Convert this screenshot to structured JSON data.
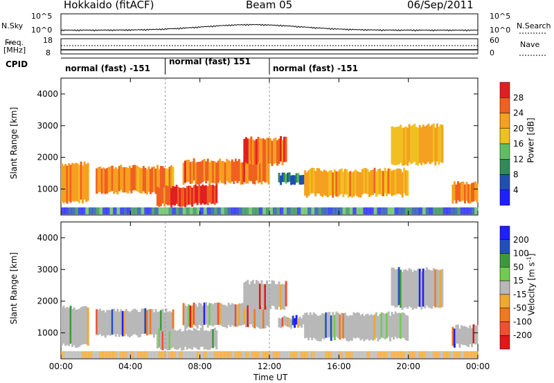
{
  "header": {
    "radar": "Hokkaido (fitACF)",
    "beam": "Beam 05",
    "date": "06/Sep/2011"
  },
  "top_panel": {
    "left_label": "N.Sky",
    "right_label": "N.Search",
    "left_ticks": [
      "10^5",
      "10^0"
    ],
    "right_ticks": [
      "10^5",
      "10^0"
    ]
  },
  "freq_panel": {
    "left_label_line1": "Freq.",
    "left_label_line2": "[MHz]",
    "right_label": "Nave",
    "left_ticks": [
      "18",
      "8"
    ],
    "right_ticks": [
      "60",
      "0"
    ]
  },
  "cpid": {
    "label": "CPID",
    "segments": [
      {
        "text": "normal (fast) -151",
        "start_h": 0,
        "end_h": 6
      },
      {
        "text": "normal (fast) 151",
        "start_h": 6,
        "end_h": 12
      },
      {
        "text": "normal (fast) -151",
        "start_h": 12,
        "end_h": 24
      }
    ]
  },
  "colors": {
    "power_scale": [
      "#1f1fff",
      "#1f4fb0",
      "#2e8b57",
      "#5fbf5f",
      "#f0c020",
      "#f5a020",
      "#f06020",
      "#e02020"
    ],
    "velocity_scale": [
      "#1f1fff",
      "#2050c0",
      "#3a9a3a",
      "#70cc50",
      "#b8b8b8",
      "#f0a830",
      "#f07820",
      "#f05030",
      "#e01818"
    ],
    "ground_scatter": "#b8b8b8"
  },
  "chart_data": [
    {
      "type": "heatmap",
      "name_on_chart": "Power [dB]",
      "ylabel": "Slant Range [km]",
      "xlabel": "Time UT",
      "x_ticks": [
        "00:00",
        "04:00",
        "08:00",
        "12:00",
        "16:00",
        "20:00",
        "00:00"
      ],
      "x_range_hours": [
        0,
        24
      ],
      "y_ticks": [
        1000,
        2000,
        3000,
        4000
      ],
      "y_range": [
        180,
        4500
      ],
      "colorbar_label": "Power [dB]",
      "colorbar_ticks": [
        "28",
        "24",
        "20",
        "16",
        "12",
        "8",
        "4"
      ],
      "colorbar_range": [
        0,
        32
      ],
      "echo_bands": [
        {
          "t0": 0.0,
          "t1": 1.6,
          "r0": 600,
          "r1": 1800,
          "level": 24
        },
        {
          "t0": 2.0,
          "t1": 6.5,
          "r0": 900,
          "r1": 1700,
          "level": 24
        },
        {
          "t0": 5.5,
          "t1": 9.0,
          "r0": 500,
          "r1": 1100,
          "level": 29
        },
        {
          "t0": 7.0,
          "t1": 12.0,
          "r0": 1200,
          "r1": 1900,
          "level": 26
        },
        {
          "t0": 10.5,
          "t1": 13.0,
          "r0": 1800,
          "r1": 2600,
          "level": 27
        },
        {
          "t0": 12.5,
          "t1": 16.0,
          "r0": 1200,
          "r1": 1500,
          "level": 8
        },
        {
          "t0": 14.0,
          "t1": 20.0,
          "r0": 800,
          "r1": 1600,
          "level": 22
        },
        {
          "t0": 19.0,
          "t1": 22.0,
          "r0": 1800,
          "r1": 3000,
          "level": 20
        },
        {
          "t0": 22.5,
          "t1": 24.0,
          "r0": 600,
          "r1": 1200,
          "level": 26
        }
      ]
    },
    {
      "type": "heatmap",
      "ylabel": "Slant Range [km]",
      "xlabel": "Time UT",
      "x_ticks": [
        "00:00",
        "04:00",
        "08:00",
        "12:00",
        "16:00",
        "20:00",
        "00:00"
      ],
      "x_range_hours": [
        0,
        24
      ],
      "y_ticks": [
        1000,
        2000,
        3000,
        4000
      ],
      "y_range": [
        180,
        4500
      ],
      "colorbar_label": "Velocity [m s^-1]",
      "colorbar_ticks": [
        "200",
        "100",
        "50",
        "15",
        "-15",
        "-50",
        "-100",
        "-200"
      ],
      "colorbar_range": [
        -250,
        250
      ],
      "dominant_value": "ground scatter (grey, near 0 m s^-1)"
    }
  ],
  "footer": {
    "xlabel": "Time UT"
  }
}
